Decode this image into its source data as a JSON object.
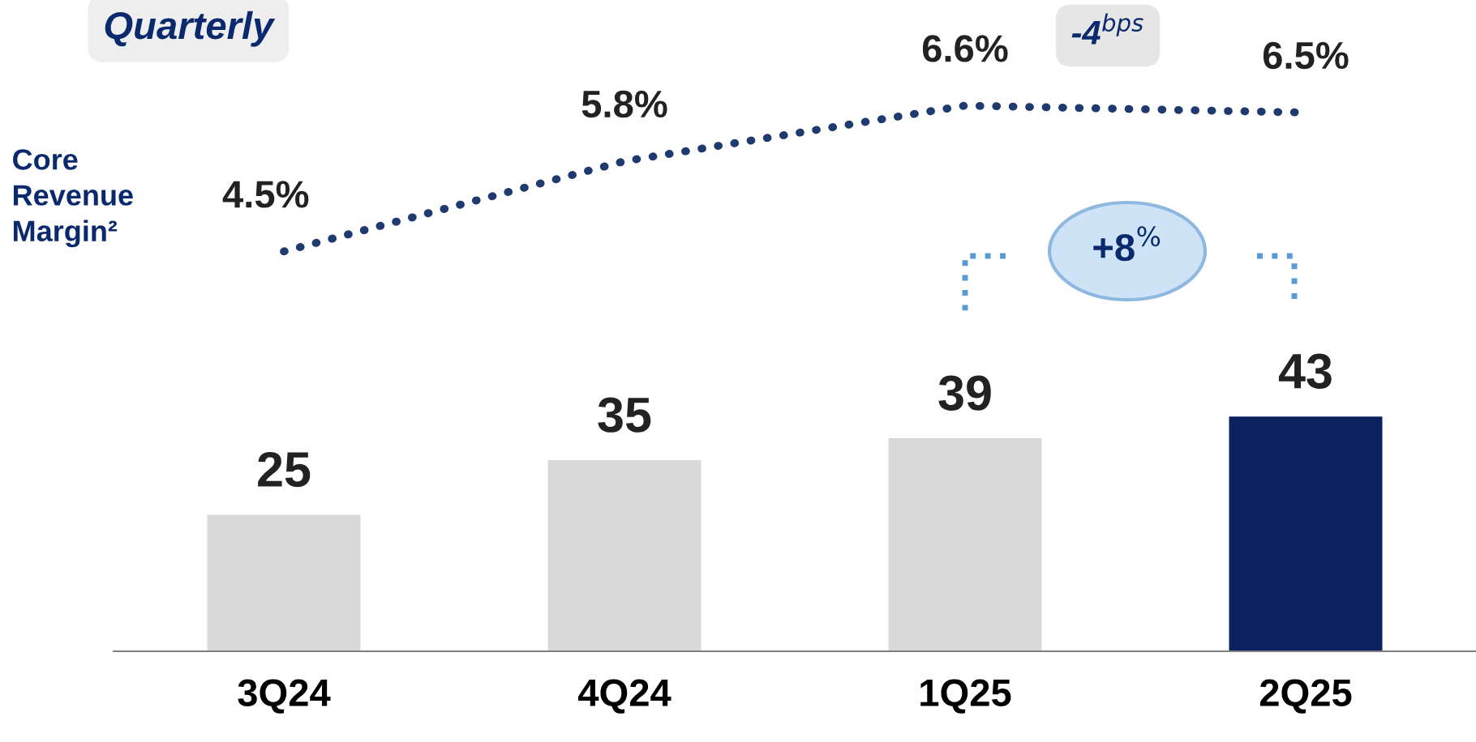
{
  "chart_data": [
    {
      "type": "bar",
      "categories": [
        "3Q24",
        "4Q24",
        "1Q25",
        "2Q25"
      ],
      "values": [
        25,
        35,
        39,
        43
      ],
      "colors": [
        "#d9d9d9",
        "#d9d9d9",
        "#d9d9d9",
        "#0b2160"
      ],
      "data_labels": true,
      "grid": false,
      "annotations": [
        "+8$^{%}$"
      ]
    },
    {
      "type": "line",
      "title": "Quarterly",
      "categories": [
        null,
        null,
        null,
        null
      ],
      "values": [
        4.5,
        5.8,
        6.6,
        6.5
      ],
      "value_labels": [
        "4.5%",
        "5.8%",
        "6.6%",
        "6.5%"
      ],
      "color": "#1f3a6e",
      "line_style": "dotted",
      "grid": false,
      "annotations": [
        "Core Revenue Margin²",
        "-4$^{bps}$"
      ]
    }
  ]
}
